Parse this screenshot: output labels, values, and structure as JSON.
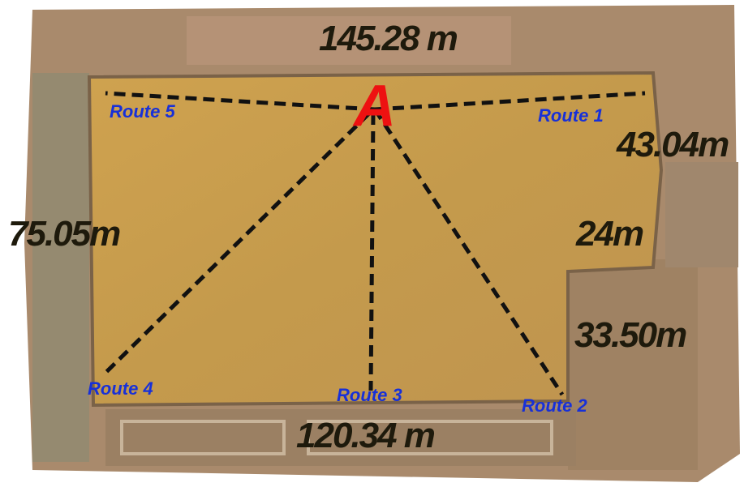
{
  "point_label": "A",
  "routes": [
    "Route 1",
    "Route 2",
    "Route 3",
    "Route 4",
    "Route 5"
  ],
  "measurements": {
    "top": "145.28 m",
    "bottom": "120.34 m",
    "left": "75.05m",
    "right_upper": "43.04m",
    "right_middle": "24m",
    "right_lower": "33.50m"
  }
}
